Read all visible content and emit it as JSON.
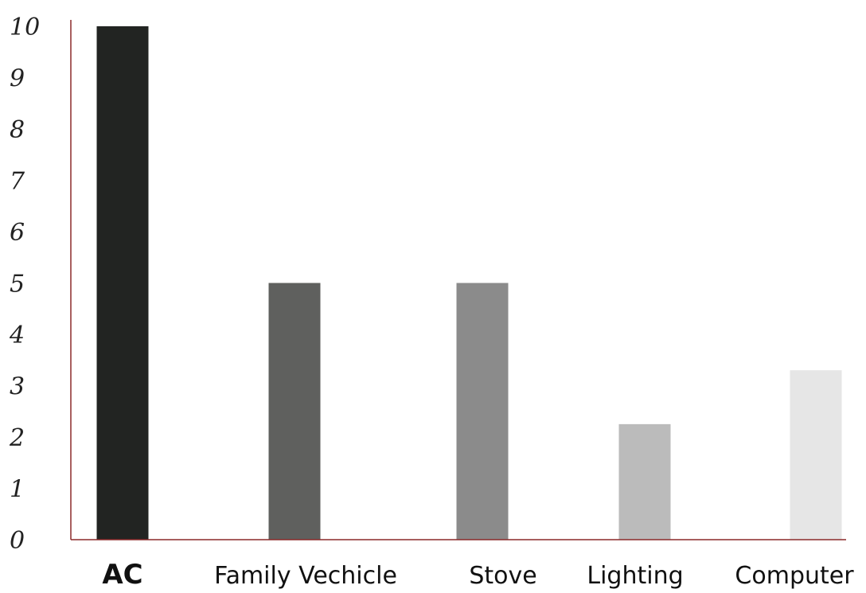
{
  "chart_data": {
    "type": "bar",
    "categories": [
      "AC",
      "Family Vechicle",
      "Stove",
      "Lighting",
      "Computer"
    ],
    "values": [
      10,
      5,
      5,
      2.25,
      3.3
    ],
    "colors": [
      "#222422",
      "#5f605e",
      "#8b8b8b",
      "#bbbbbb",
      "#e6e6e6"
    ],
    "ylim": [
      0,
      10
    ],
    "yticks": [
      "0",
      "1",
      "2",
      "3",
      "4",
      "5",
      "6",
      "7",
      "8",
      "9",
      "10"
    ],
    "axis_color": "#8b2a2a",
    "grid": false,
    "legend": "none"
  }
}
